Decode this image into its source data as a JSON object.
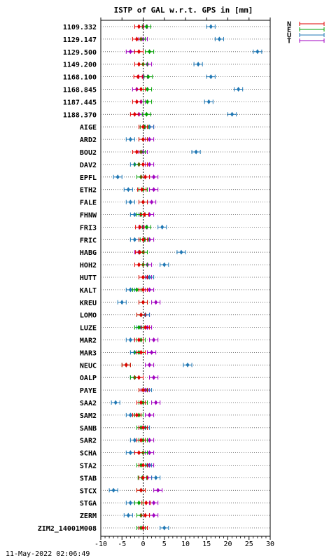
{
  "timestamp": "11-May-2022 02:06:49",
  "colors": {
    "N": "#e00000",
    "E": "#00a000",
    "U": "#1f77b4",
    "T": "#a000c0"
  },
  "chart_data": {
    "type": "scatter",
    "title": "ISTP of GAL w.r.t. GPS in [mm]",
    "xlim": [
      -10,
      30
    ],
    "x_ticks": [
      -10,
      -5,
      0,
      5,
      10,
      15,
      20,
      25,
      30
    ],
    "x_tick_labels": [
      "-10",
      "-5",
      "0",
      "5",
      "10",
      "15",
      "20",
      "25",
      "30"
    ],
    "grid": "horizontal dotted",
    "reference_line": 0,
    "legend": {
      "position": "top-right",
      "entries": [
        "N",
        "E",
        "U",
        "T"
      ]
    },
    "error_bar_halfwidth": 1,
    "categories": [
      "1109.332",
      "1129.147",
      "1129.500",
      "1149.200",
      "1168.100",
      "1168.845",
      "1187.445",
      "1188.370",
      "AIGE",
      "ARD2",
      "BOU2",
      "DAV2",
      "EPFL",
      "ETH2",
      "FALE",
      "FHNW",
      "FRI3",
      "FRIC",
      "HABG",
      "HOH2",
      "HUTT",
      "KALT",
      "KREU",
      "LOMO",
      "LUZE",
      "MAR2",
      "MAR3",
      "NEUC",
      "OALP",
      "PAYE",
      "SAA2",
      "SAM2",
      "SANB",
      "SAR2",
      "SCHA",
      "STA2",
      "STAB",
      "STCX",
      "STGA",
      "ZERM",
      "ZIM2_14001M008"
    ],
    "series": [
      {
        "name": "N",
        "values": [
          -1.0,
          -1.5,
          -1.0,
          -1.0,
          -1.2,
          -0.5,
          -1.5,
          -2.0,
          0.0,
          0.0,
          -1.5,
          0.0,
          0.5,
          -0.3,
          0.0,
          0.3,
          -0.8,
          0.0,
          -0.8,
          -1.0,
          0.0,
          0.0,
          0.0,
          -0.5,
          0.5,
          -1.0,
          -0.5,
          -4.0,
          -1.0,
          0.0,
          -0.5,
          -1.5,
          0.0,
          -0.5,
          -1.0,
          0.0,
          0.0,
          -0.5,
          0.7,
          0.5,
          0.0
        ]
      },
      {
        "name": "E",
        "values": [
          0.8,
          -0.5,
          1.5,
          0.0,
          1.2,
          1.0,
          1.0,
          0.8,
          0.3,
          0.0,
          -0.5,
          -1.0,
          -0.5,
          0.0,
          0.0,
          -0.5,
          0.8,
          0.3,
          0.0,
          0.0,
          0.0,
          -1.5,
          0.0,
          -0.5,
          -1.0,
          -0.5,
          -1.0,
          -4.0,
          -2.0,
          0.0,
          0.0,
          -1.0,
          -0.5,
          0.0,
          0.0,
          -0.5,
          -0.2,
          -0.5,
          -1.0,
          -0.5,
          -0.5
        ]
      },
      {
        "name": "U",
        "values": [
          16.0,
          18.0,
          27.0,
          13.0,
          16.0,
          22.5,
          15.5,
          21.0,
          1.5,
          -3.0,
          12.5,
          -2.0,
          -6.0,
          -3.5,
          -3.0,
          -2.0,
          4.5,
          -2.0,
          9.0,
          5.0,
          1.5,
          -3.0,
          -5.0,
          0.5,
          -0.5,
          -3.0,
          -2.0,
          10.5,
          -2.0,
          1.0,
          -6.5,
          -3.0,
          0.5,
          -2.0,
          -3.0,
          1.0,
          3.0,
          -7.0,
          -3.0,
          -3.5,
          5.0
        ]
      },
      {
        "name": "T",
        "values": [
          0.0,
          0.0,
          -3.0,
          1.0,
          0.0,
          -1.5,
          -0.5,
          -1.0,
          1.5,
          1.5,
          0.0,
          1.5,
          2.5,
          2.5,
          2.0,
          1.5,
          0.0,
          1.5,
          -1.0,
          1.0,
          1.0,
          1.5,
          3.0,
          0.5,
          1.0,
          2.5,
          2.0,
          1.5,
          2.5,
          0.5,
          3.0,
          1.5,
          0.0,
          1.5,
          1.5,
          1.5,
          1.0,
          3.5,
          2.5,
          2.5,
          0.0
        ]
      }
    ]
  }
}
